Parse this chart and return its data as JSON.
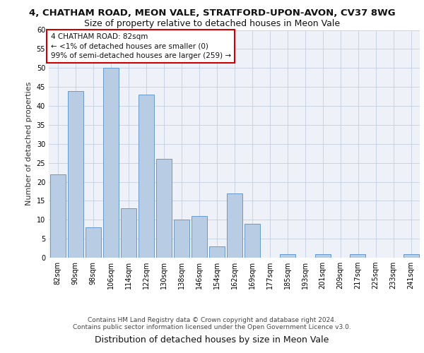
{
  "title_line1": "4, CHATHAM ROAD, MEON VALE, STRATFORD-UPON-AVON, CV37 8WG",
  "title_line2": "Size of property relative to detached houses in Meon Vale",
  "xlabel": "Distribution of detached houses by size in Meon Vale",
  "ylabel": "Number of detached properties",
  "categories": [
    "82sqm",
    "90sqm",
    "98sqm",
    "106sqm",
    "114sqm",
    "122sqm",
    "130sqm",
    "138sqm",
    "146sqm",
    "154sqm",
    "162sqm",
    "169sqm",
    "177sqm",
    "185sqm",
    "193sqm",
    "201sqm",
    "209sqm",
    "217sqm",
    "225sqm",
    "233sqm",
    "241sqm"
  ],
  "values": [
    22,
    44,
    8,
    50,
    13,
    43,
    26,
    10,
    11,
    3,
    17,
    9,
    0,
    1,
    0,
    1,
    0,
    1,
    0,
    0,
    1
  ],
  "bar_color": "#b8cce4",
  "bar_edge_color": "#6699cc",
  "annotation_box_text": "4 CHATHAM ROAD: 82sqm\n← <1% of detached houses are smaller (0)\n99% of semi-detached houses are larger (259) →",
  "annotation_box_color": "#ffffff",
  "annotation_box_edge_color": "#cc0000",
  "ylim": [
    0,
    60
  ],
  "yticks": [
    0,
    5,
    10,
    15,
    20,
    25,
    30,
    35,
    40,
    45,
    50,
    55,
    60
  ],
  "bg_color": "#eef2f8",
  "footer_line1": "Contains HM Land Registry data © Crown copyright and database right 2024.",
  "footer_line2": "Contains public sector information licensed under the Open Government Licence v3.0.",
  "title_fontsize": 9.5,
  "subtitle_fontsize": 9,
  "xlabel_fontsize": 9,
  "ylabel_fontsize": 8,
  "tick_fontsize": 7,
  "annotation_fontsize": 7.5,
  "footer_fontsize": 6.5
}
